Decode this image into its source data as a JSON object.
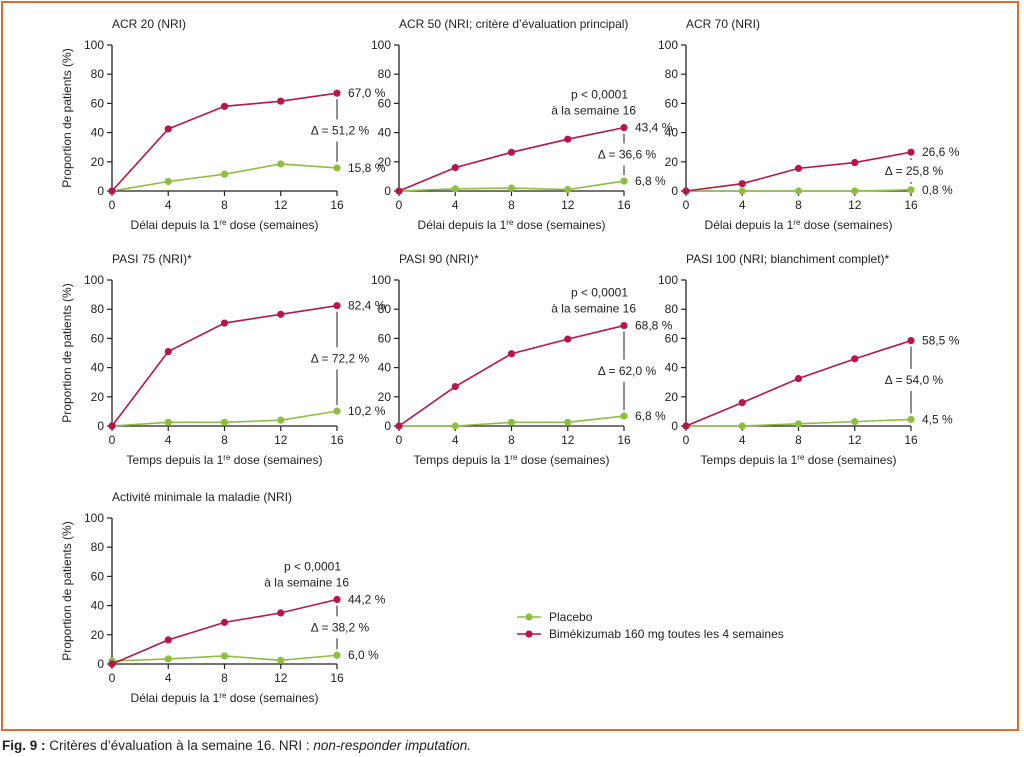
{
  "caption": {
    "label": "Fig. 9 :",
    "text": " Critères d’évaluation à la semaine 16. NRI : ",
    "definition": "non-responder imputation."
  },
  "legend": {
    "placebo": "Placebo",
    "bimekizumab": "Bimékizumab 160 mg toutes les 4 semaines"
  },
  "colors": {
    "placebo": "#8cbf3f",
    "bimekizumab": "#b5174a",
    "frame": "#e06a2c",
    "axis": "#222222"
  },
  "chart_data": [
    {
      "type": "line",
      "title": "ACR 20 (NRI)",
      "xlabel_pre": "Délai depuis la 1",
      "xlabel_sup": "re",
      "xlabel_post": " dose (semaines)",
      "ylabel": "Proportion de patients (%)",
      "x": [
        0,
        4,
        8,
        12,
        16
      ],
      "ylim": [
        0,
        100
      ],
      "yticks": [
        0,
        20,
        40,
        60,
        80,
        100
      ],
      "series": [
        {
          "name": "Placebo",
          "values": [
            0,
            6.5,
            11.5,
            18.5,
            15.8
          ]
        },
        {
          "name": "Bimékizumab 160 mg toutes les 4 semaines",
          "values": [
            0,
            42.5,
            58,
            61.5,
            67.0
          ]
        }
      ],
      "labels": {
        "top": "67,0 %",
        "bottom": "15,8 %",
        "delta": "Δ = 51,2 %",
        "p1": "",
        "p2": ""
      }
    },
    {
      "type": "line",
      "title": "ACR 50 (NRI; critère d’évaluation principal)",
      "xlabel_pre": "Délai depuis la 1",
      "xlabel_sup": "re",
      "xlabel_post": " dose (semaines)",
      "ylabel": "",
      "x": [
        0,
        4,
        8,
        12,
        16
      ],
      "ylim": [
        0,
        100
      ],
      "yticks": [
        0,
        20,
        40,
        60,
        80,
        100
      ],
      "series": [
        {
          "name": "Placebo",
          "values": [
            0,
            1.5,
            2,
            1,
            6.8
          ]
        },
        {
          "name": "Bimékizumab 160 mg toutes les 4 semaines",
          "values": [
            0,
            16,
            26.5,
            35.5,
            43.4
          ]
        }
      ],
      "labels": {
        "top": "43,4 %",
        "bottom": "6,8 %",
        "delta": "Δ = 36,6 %",
        "p1": "p < 0,0001",
        "p2": "à la semaine 16"
      }
    },
    {
      "type": "line",
      "title": "ACR 70 (NRI)",
      "xlabel_pre": "Délai depuis la 1",
      "xlabel_sup": "re",
      "xlabel_post": " dose (semaines)",
      "ylabel": "",
      "x": [
        0,
        4,
        8,
        12,
        16
      ],
      "ylim": [
        0,
        100
      ],
      "yticks": [
        0,
        20,
        40,
        60,
        80,
        100
      ],
      "series": [
        {
          "name": "Placebo",
          "values": [
            0,
            0,
            0,
            0,
            0.8
          ]
        },
        {
          "name": "Bimékizumab 160 mg toutes les 4 semaines",
          "values": [
            0,
            5,
            15.5,
            19.5,
            26.6
          ]
        }
      ],
      "labels": {
        "top": "26,6 %",
        "bottom": "0,8 %",
        "delta": "Δ = 25,8 %",
        "p1": "",
        "p2": ""
      }
    },
    {
      "type": "line",
      "title": "PASI 75 (NRI)*",
      "xlabel_pre": "Temps depuis la 1",
      "xlabel_sup": "re",
      "xlabel_post": " dose (semaines)",
      "ylabel": "Proportion de patients (%)",
      "x": [
        0,
        4,
        8,
        12,
        16
      ],
      "ylim": [
        0,
        100
      ],
      "yticks": [
        0,
        20,
        40,
        60,
        80,
        100
      ],
      "series": [
        {
          "name": "Placebo",
          "values": [
            0,
            2.5,
            2.5,
            4,
            10.2
          ]
        },
        {
          "name": "Bimékizumab 160 mg toutes les 4 semaines",
          "values": [
            0,
            51,
            70.5,
            76.5,
            82.4
          ]
        }
      ],
      "labels": {
        "top": "82,4 %",
        "bottom": "10,2 %",
        "delta": "Δ = 72,2 %",
        "p1": "",
        "p2": ""
      }
    },
    {
      "type": "line",
      "title": "PASI 90 (NRI)*",
      "xlabel_pre": "Temps depuis la 1",
      "xlabel_sup": "re",
      "xlabel_post": " dose (semaines)",
      "ylabel": "",
      "x": [
        0,
        4,
        8,
        12,
        16
      ],
      "ylim": [
        0,
        100
      ],
      "yticks": [
        0,
        20,
        40,
        60,
        80,
        100
      ],
      "series": [
        {
          "name": "Placebo",
          "values": [
            0,
            0,
            2.5,
            2.5,
            6.8
          ]
        },
        {
          "name": "Bimékizumab 160 mg toutes les 4 semaines",
          "values": [
            0,
            27,
            49.5,
            59.5,
            68.8
          ]
        }
      ],
      "labels": {
        "top": "68,8 %",
        "bottom": "6,8 %",
        "delta": "Δ = 62,0 %",
        "p1": "p < 0,0001",
        "p2": "à la semaine 16"
      }
    },
    {
      "type": "line",
      "title": "PASI 100 (NRI; blanchiment complet)*",
      "xlabel_pre": "Temps depuis la 1",
      "xlabel_sup": "re",
      "xlabel_post": " dose (semaines)",
      "ylabel": "",
      "x": [
        0,
        4,
        8,
        12,
        16
      ],
      "ylim": [
        0,
        100
      ],
      "yticks": [
        0,
        20,
        40,
        60,
        80,
        100
      ],
      "series": [
        {
          "name": "Placebo",
          "values": [
            0,
            0,
            1.5,
            3,
            4.5
          ]
        },
        {
          "name": "Bimékizumab 160 mg toutes les 4 semaines",
          "values": [
            0,
            16,
            32.5,
            46,
            58.5
          ]
        }
      ],
      "labels": {
        "top": "58,5 %",
        "bottom": "4,5 %",
        "delta": "Δ = 54,0 %",
        "p1": "",
        "p2": ""
      }
    },
    {
      "type": "line",
      "title": "Activité minimale la maladie (NRI)",
      "xlabel_pre": "Délai depuis la 1",
      "xlabel_sup": "re",
      "xlabel_post": " dose (semaines)",
      "ylabel": "Proportion de patients (%)",
      "x": [
        0,
        4,
        8,
        12,
        16
      ],
      "ylim": [
        0,
        100
      ],
      "yticks": [
        0,
        20,
        40,
        60,
        80,
        100
      ],
      "series": [
        {
          "name": "Placebo",
          "values": [
            2,
            3.5,
            5.5,
            2.5,
            6.0
          ]
        },
        {
          "name": "Bimékizumab 160 mg toutes les 4 semaines",
          "values": [
            0,
            16.5,
            28.5,
            35,
            44.2
          ]
        }
      ],
      "labels": {
        "top": "44,2 %",
        "bottom": "6,0 %",
        "delta": "Δ = 38,2 %",
        "p1": "p < 0,0001",
        "p2": "à la semaine 16"
      }
    }
  ]
}
